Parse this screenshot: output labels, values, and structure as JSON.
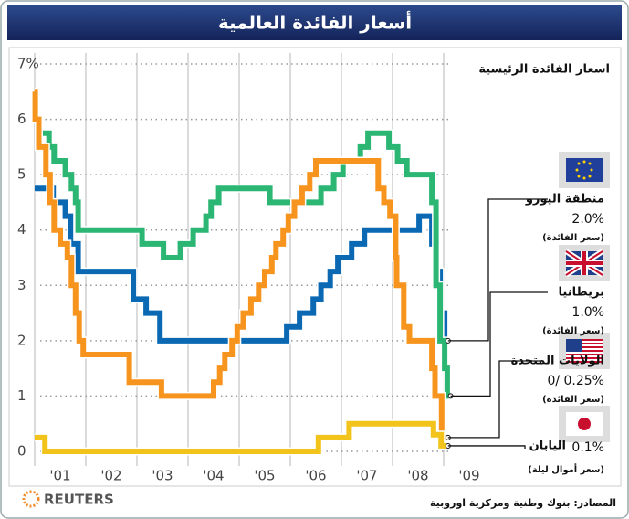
{
  "chart_data": {
    "type": "step-line",
    "title": "أسعار الفائدة العالمية",
    "subtitle": "اسعار الفائدة الرئيسية",
    "source": "المصادر: بنوك وطنية ومركزية اوروبية",
    "credit": "REUTERS",
    "xlim": [
      2001,
      2009.6
    ],
    "xticks": [
      {
        "value": 2001.5,
        "label": "'01"
      },
      {
        "value": 2002.5,
        "label": "'02"
      },
      {
        "value": 2003.5,
        "label": "'03"
      },
      {
        "value": 2004.5,
        "label": "'04"
      },
      {
        "value": 2005.5,
        "label": "'05"
      },
      {
        "value": 2006.5,
        "label": "'06"
      },
      {
        "value": 2007.5,
        "label": "'07"
      },
      {
        "value": 2008.5,
        "label": "'08"
      },
      {
        "value": 2009.5,
        "label": "'09"
      }
    ],
    "ylim": [
      0,
      7
    ],
    "yticks": [
      0,
      1,
      2,
      3,
      4,
      5,
      6,
      {
        "value": 7,
        "label": "7%"
      }
    ],
    "grid": true,
    "series": [
      {
        "name": "منطقة اليورو",
        "end_label": "2.0%",
        "note": "(سعر الفائدة)",
        "color": "#0b69b3",
        "x": [
          2001.0,
          2001.36,
          2001.36,
          2001.6,
          2001.6,
          2001.7,
          2001.7,
          2001.85,
          2001.85,
          2002.93,
          2002.93,
          2003.18,
          2003.18,
          2003.45,
          2003.45,
          2005.93,
          2005.93,
          2006.18,
          2006.18,
          2006.45,
          2006.45,
          2006.6,
          2006.6,
          2006.78,
          2006.78,
          2006.93,
          2006.93,
          2007.2,
          2007.2,
          2007.45,
          2007.45,
          2008.52,
          2008.52,
          2008.77,
          2008.77,
          2008.85,
          2008.85,
          2008.93,
          2008.93,
          2009.02,
          2009.02,
          2009.05
        ],
        "values": [
          4.75,
          4.75,
          4.5,
          4.5,
          4.25,
          4.25,
          3.75,
          3.75,
          3.25,
          3.25,
          2.75,
          2.75,
          2.5,
          2.5,
          2,
          2,
          2.25,
          2.25,
          2.5,
          2.5,
          2.75,
          2.75,
          3,
          3,
          3.25,
          3.25,
          3.5,
          3.5,
          3.75,
          3.75,
          4,
          4,
          4.25,
          4.25,
          3.75,
          3.75,
          3.25,
          3.25,
          2.5,
          2.5,
          2,
          2
        ]
      },
      {
        "name": "بريطانيا",
        "end_label": "1.0%",
        "note": "(سعر الفائدة)",
        "color": "#2bb673",
        "x": [
          2001.0,
          2001.1,
          2001.1,
          2001.28,
          2001.28,
          2001.38,
          2001.38,
          2001.6,
          2001.6,
          2001.72,
          2001.72,
          2001.8,
          2001.8,
          2001.85,
          2001.85,
          2003.1,
          2003.1,
          2003.52,
          2003.52,
          2003.85,
          2003.85,
          2004.1,
          2004.1,
          2004.35,
          2004.35,
          2004.45,
          2004.45,
          2004.6,
          2004.6,
          2005.6,
          2005.6,
          2006.6,
          2006.6,
          2006.85,
          2006.85,
          2007.03,
          2007.03,
          2007.37,
          2007.37,
          2007.52,
          2007.52,
          2007.93,
          2007.93,
          2008.1,
          2008.1,
          2008.28,
          2008.28,
          2008.77,
          2008.77,
          2008.85,
          2008.85,
          2008.93,
          2008.93,
          2009.02,
          2009.02,
          2009.07,
          2009.07,
          2009.1
        ],
        "values": [
          6,
          6,
          5.75,
          5.75,
          5.5,
          5.5,
          5.25,
          5.25,
          5,
          5,
          4.75,
          4.75,
          4.5,
          4.5,
          4,
          4,
          3.75,
          3.75,
          3.5,
          3.5,
          3.75,
          3.75,
          4,
          4,
          4.25,
          4.25,
          4.5,
          4.5,
          4.75,
          4.75,
          4.5,
          4.5,
          4.75,
          4.75,
          5,
          5,
          5.25,
          5.25,
          5.5,
          5.5,
          5.75,
          5.75,
          5.5,
          5.5,
          5.25,
          5.25,
          5,
          5,
          4.5,
          4.5,
          3,
          3,
          2,
          2,
          1.5,
          1.5,
          1,
          1
        ]
      },
      {
        "name": "الولايات المتحدة",
        "end_label": "0/ 0.25%",
        "note": "(سعر الفائدة)",
        "color": "#f7941d",
        "x": [
          2001.0,
          2001.01,
          2001.01,
          2001.08,
          2001.08,
          2001.22,
          2001.22,
          2001.3,
          2001.3,
          2001.38,
          2001.38,
          2001.5,
          2001.5,
          2001.64,
          2001.64,
          2001.72,
          2001.72,
          2001.8,
          2001.8,
          2001.87,
          2001.87,
          2001.95,
          2001.95,
          2002.85,
          2002.85,
          2003.48,
          2003.48,
          2004.5,
          2004.5,
          2004.62,
          2004.62,
          2004.72,
          2004.72,
          2004.86,
          2004.86,
          2004.96,
          2004.96,
          2005.08,
          2005.08,
          2005.23,
          2005.23,
          2005.38,
          2005.38,
          2005.5,
          2005.5,
          2005.64,
          2005.64,
          2005.72,
          2005.72,
          2005.86,
          2005.86,
          2005.96,
          2005.96,
          2006.08,
          2006.08,
          2006.23,
          2006.23,
          2006.38,
          2006.38,
          2006.5,
          2006.5,
          2007.72,
          2007.72,
          2007.83,
          2007.83,
          2007.95,
          2007.95,
          2008.06,
          2008.06,
          2008.08,
          2008.08,
          2008.22,
          2008.22,
          2008.33,
          2008.33,
          2008.77,
          2008.77,
          2008.83,
          2008.83,
          2008.96,
          2008.96,
          2009.05
        ],
        "values": [
          6.5,
          6.5,
          6,
          6,
          5.5,
          5.5,
          5,
          5,
          4.5,
          4.5,
          4,
          4,
          3.75,
          3.75,
          3.5,
          3.5,
          3,
          3,
          2.5,
          2.5,
          2,
          2,
          1.75,
          1.75,
          1.25,
          1.25,
          1,
          1,
          1.25,
          1.25,
          1.5,
          1.5,
          1.75,
          1.75,
          2,
          2,
          2.25,
          2.25,
          2.5,
          2.5,
          2.75,
          2.75,
          3,
          3,
          3.25,
          3.25,
          3.5,
          3.5,
          3.75,
          3.75,
          4,
          4,
          4.25,
          4.25,
          4.5,
          4.5,
          4.75,
          4.75,
          5,
          5,
          5.25,
          5.25,
          4.75,
          4.75,
          4.5,
          4.5,
          4.25,
          4.25,
          3.5,
          3.5,
          3,
          3,
          2.25,
          2.25,
          2,
          2,
          1.5,
          1.5,
          1,
          1,
          0.25,
          0.25
        ]
      },
      {
        "name": "اليابان",
        "end_label": "0.1%",
        "note": "(سعر أموال ليلة)",
        "color": "#f2c31b",
        "x": [
          2001.0,
          2001.2,
          2001.2,
          2006.55,
          2006.55,
          2007.15,
          2007.15,
          2008.8,
          2008.8,
          2008.95,
          2008.95,
          2009.05
        ],
        "values": [
          0.25,
          0.25,
          0,
          0,
          0.25,
          0.25,
          0.5,
          0.5,
          0.3,
          0.3,
          0.1,
          0.1
        ]
      }
    ]
  }
}
